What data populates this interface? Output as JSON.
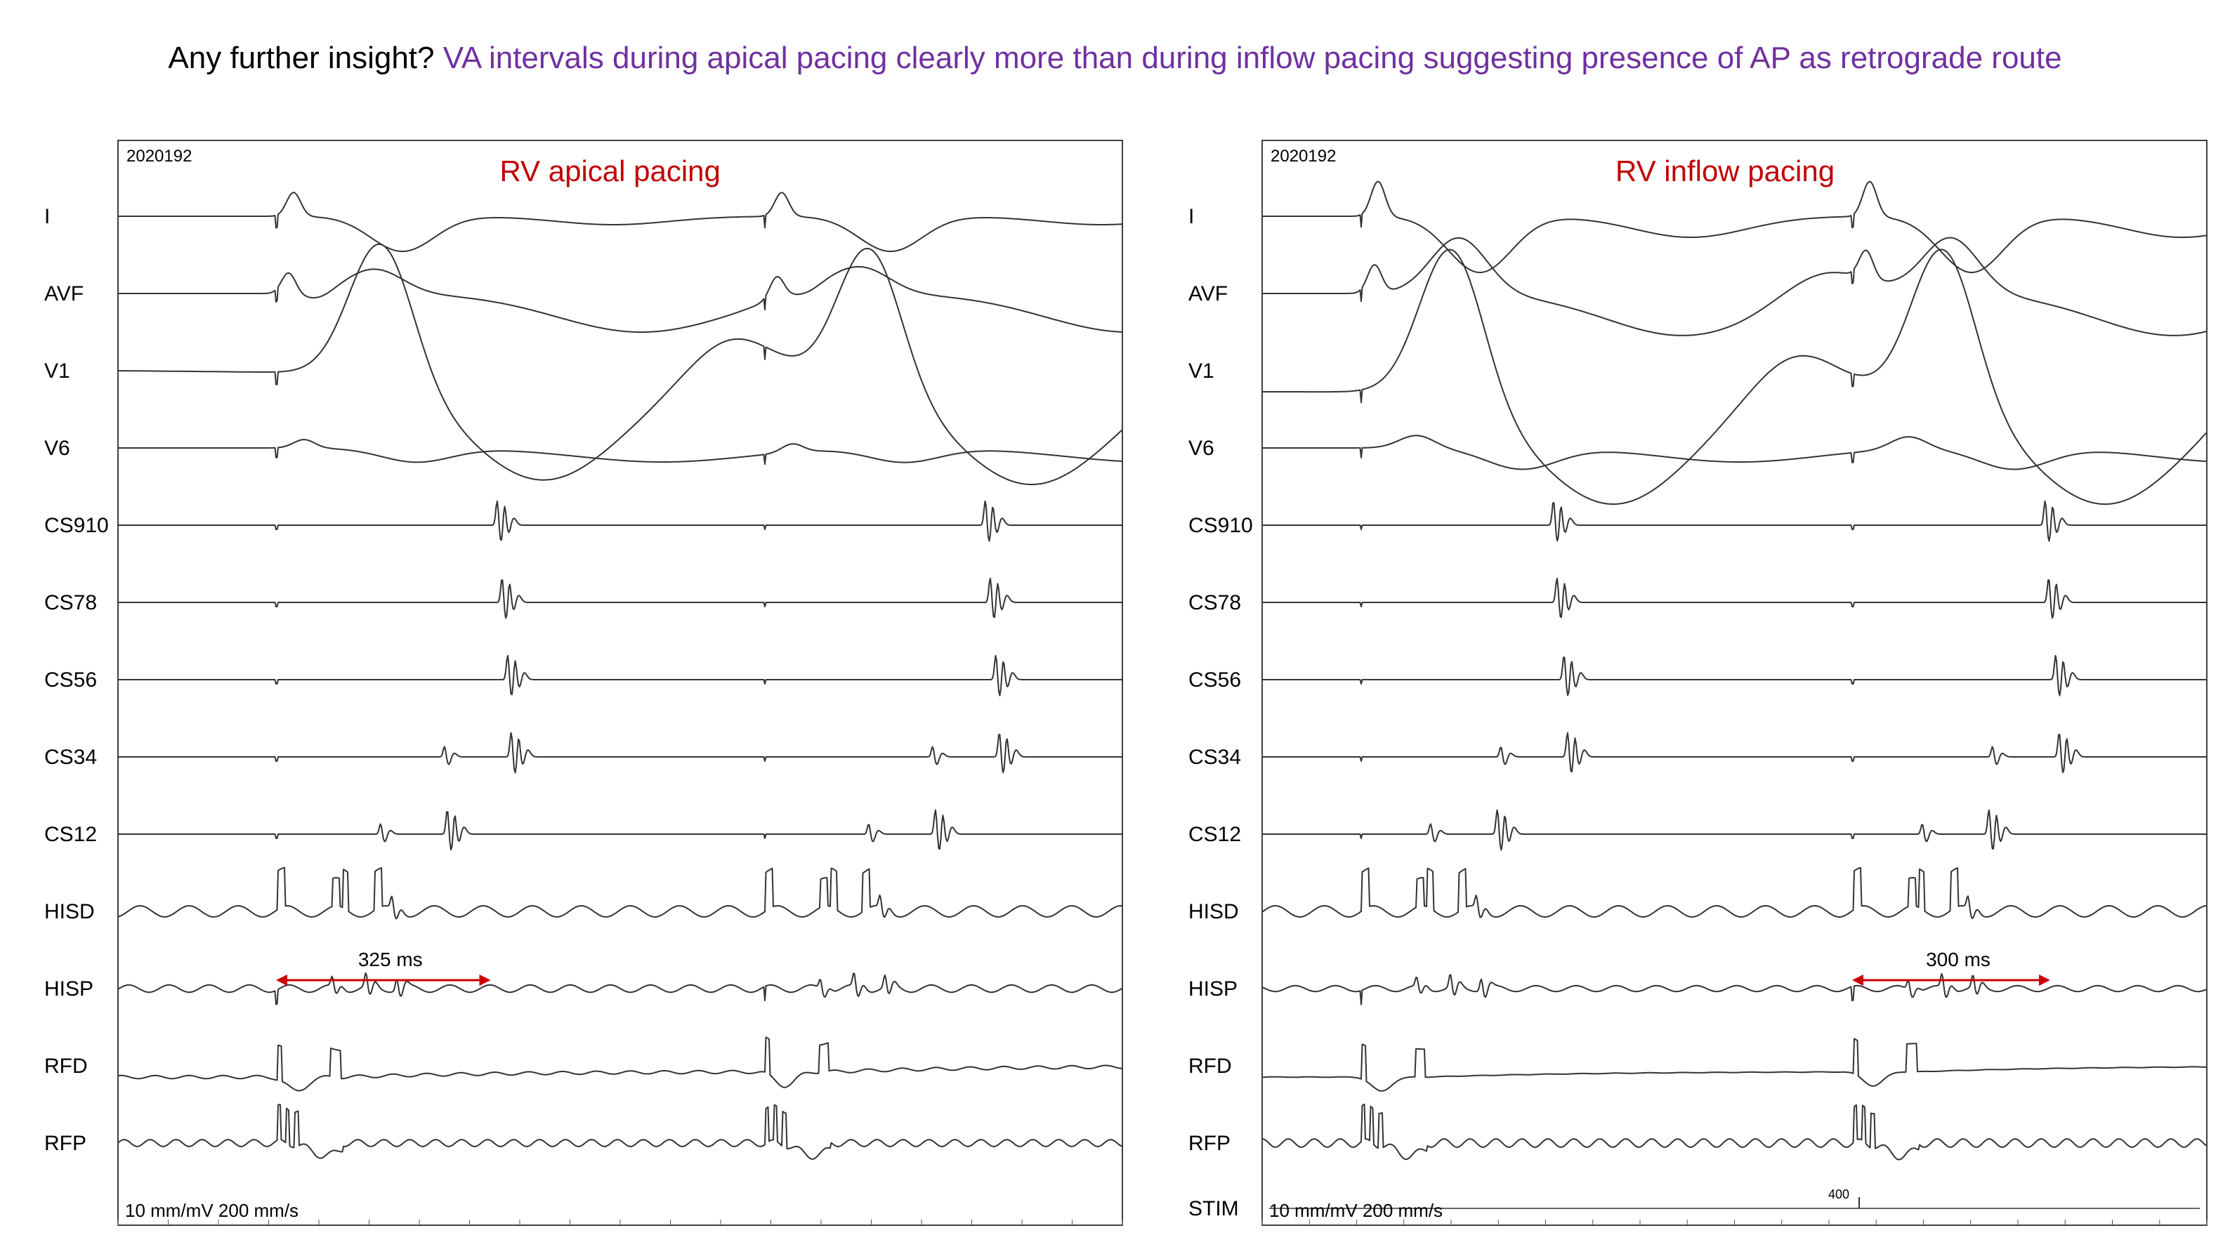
{
  "slide": {
    "question": "Any further insight?",
    "answer": "VA intervals during apical pacing clearly more than during inflow pacing suggesting presence of AP as retrograde route",
    "question_color": "#000000",
    "answer_color": "#7030a0"
  },
  "panels": [
    {
      "id": "apical",
      "record_id": "2020192",
      "title": "RV apical pacing",
      "title_color": "#c00000",
      "leads": [
        "I",
        "AVF",
        "V1",
        "V6",
        "CS910",
        "CS78",
        "CS56",
        "CS34",
        "CS12",
        "HISD",
        "HISP",
        "RFD",
        "RFP"
      ],
      "scale_text": "10 mm/mV   200 mm/s",
      "interval_label": "325 ms",
      "interval_ms": 325,
      "arrow_color": "#cc0000"
    },
    {
      "id": "inflow",
      "record_id": "2020192",
      "title": "RV inflow pacing",
      "title_color": "#c00000",
      "leads": [
        "I",
        "AVF",
        "V1",
        "V6",
        "CS910",
        "CS78",
        "CS56",
        "CS34",
        "CS12",
        "HISD",
        "HISP",
        "RFD",
        "RFP",
        "STIM"
      ],
      "scale_text": "10 mm/mV   200 mm/s",
      "interval_label": "300 ms",
      "interval_ms": 300,
      "stim_marker": "400",
      "arrow_color": "#cc0000"
    }
  ]
}
